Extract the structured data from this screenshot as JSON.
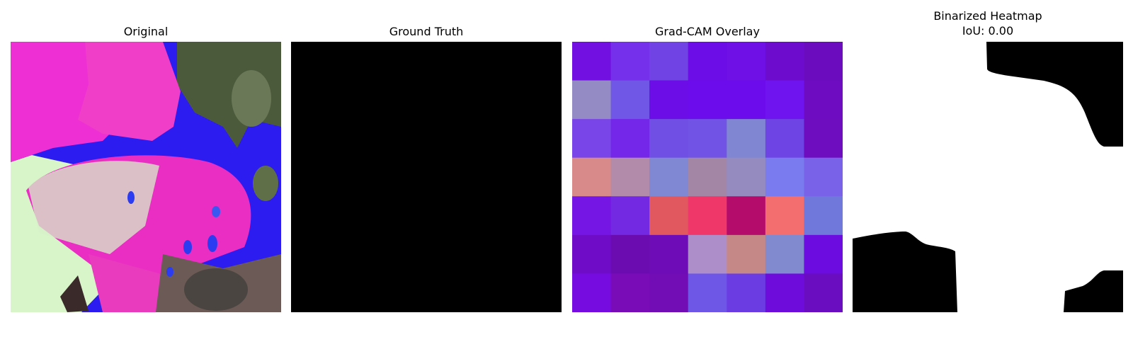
{
  "panels": [
    {
      "title": "Original"
    },
    {
      "title": "Ground Truth"
    },
    {
      "title": "Grad-CAM Overlay"
    },
    {
      "title": "Binarized Heatmap",
      "subtitle": "IoU: 0.00"
    }
  ],
  "gradcam_grid": [
    [
      "#7110e0",
      "#7530eb",
      "#7043e4",
      "#6c0ce6",
      "#6e10e6",
      "#6e0cce",
      "#6c0cbf"
    ],
    [
      "#958bc4",
      "#7057e6",
      "#6c0ce6",
      "#6c0ced",
      "#6c0ced",
      "#6f14ef",
      "#6e0cc2"
    ],
    [
      "#7a45e8",
      "#7426e9",
      "#704fe4",
      "#7153e6",
      "#8086d2",
      "#6e44e4",
      "#6e0cbf"
    ],
    [
      "#d88a8a",
      "#b18ba9",
      "#8087d3",
      "#a385a6",
      "#958bbf",
      "#7a7bef",
      "#7a62e8"
    ],
    [
      "#7516e4",
      "#7328e2",
      "#e2585f",
      "#ef3869",
      "#b30c6a",
      "#f36e6e",
      "#7078dc"
    ],
    [
      "#6e0cc7",
      "#6a0cb0",
      "#6e0cb8",
      "#ad8ec9",
      "#c58887",
      "#8189cf",
      "#6c0ce0"
    ],
    [
      "#760ce0",
      "#7a0cb8",
      "#720cb4",
      "#6e56e6",
      "#6c3ce3",
      "#6e0cdc",
      "#6a0cbf"
    ]
  ],
  "colors": {
    "background": "#ffffff",
    "ground_truth": "#000000",
    "mask_on": "#ffffff",
    "mask_off": "#000000"
  }
}
